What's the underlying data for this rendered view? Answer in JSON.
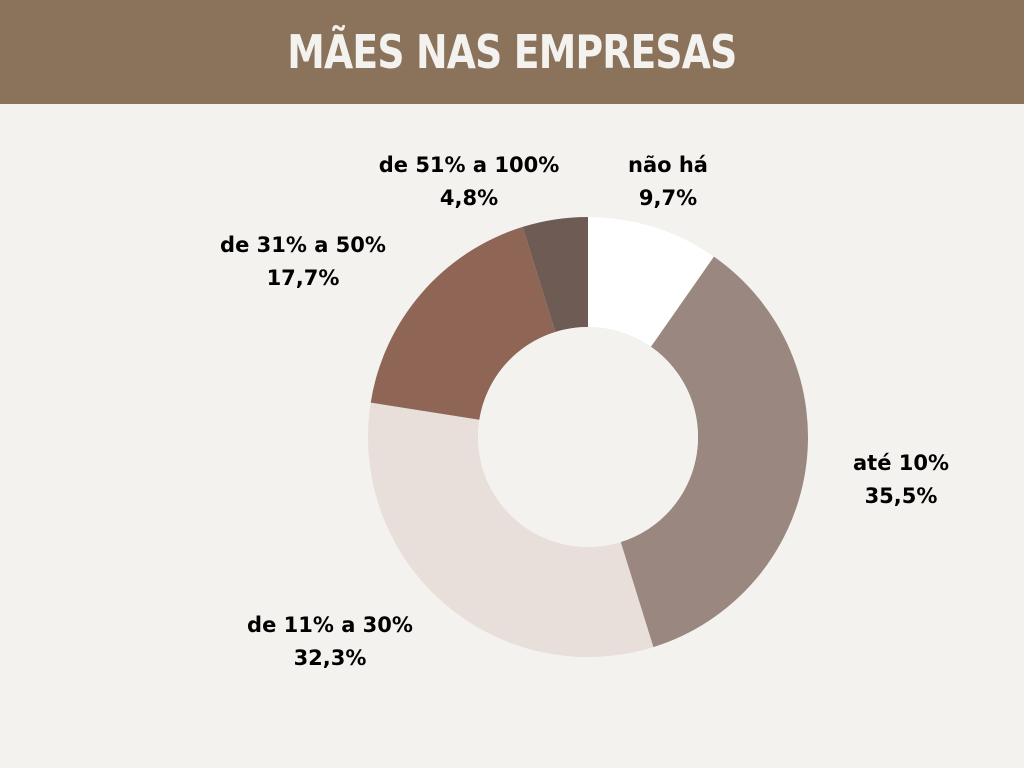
{
  "header": {
    "title": "MÃES NAS EMPRESAS",
    "background": "#8b735b"
  },
  "page": {
    "background": "#f4f2ef"
  },
  "chart_data": {
    "type": "pie",
    "donut": true,
    "start_angle_deg": 0,
    "direction": "clockwise",
    "title": "MÃES NAS EMPRESAS",
    "slices": [
      {
        "label": "não há",
        "value": 9.7,
        "value_label": "9,7%",
        "color": "#ffffff"
      },
      {
        "label": "até 10%",
        "value": 35.5,
        "value_label": "35,5%",
        "color": "#9a8880"
      },
      {
        "label": "de 11% a 30%",
        "value": 32.3,
        "value_label": "32,3%",
        "color": "#e8dfdb"
      },
      {
        "label": "de 31% a 50%",
        "value": 17.7,
        "value_label": "17,7%",
        "color": "#8f6555"
      },
      {
        "label": "de 51% a 100%",
        "value": 4.8,
        "value_label": "4,8%",
        "color": "#6e5b54"
      }
    ]
  }
}
